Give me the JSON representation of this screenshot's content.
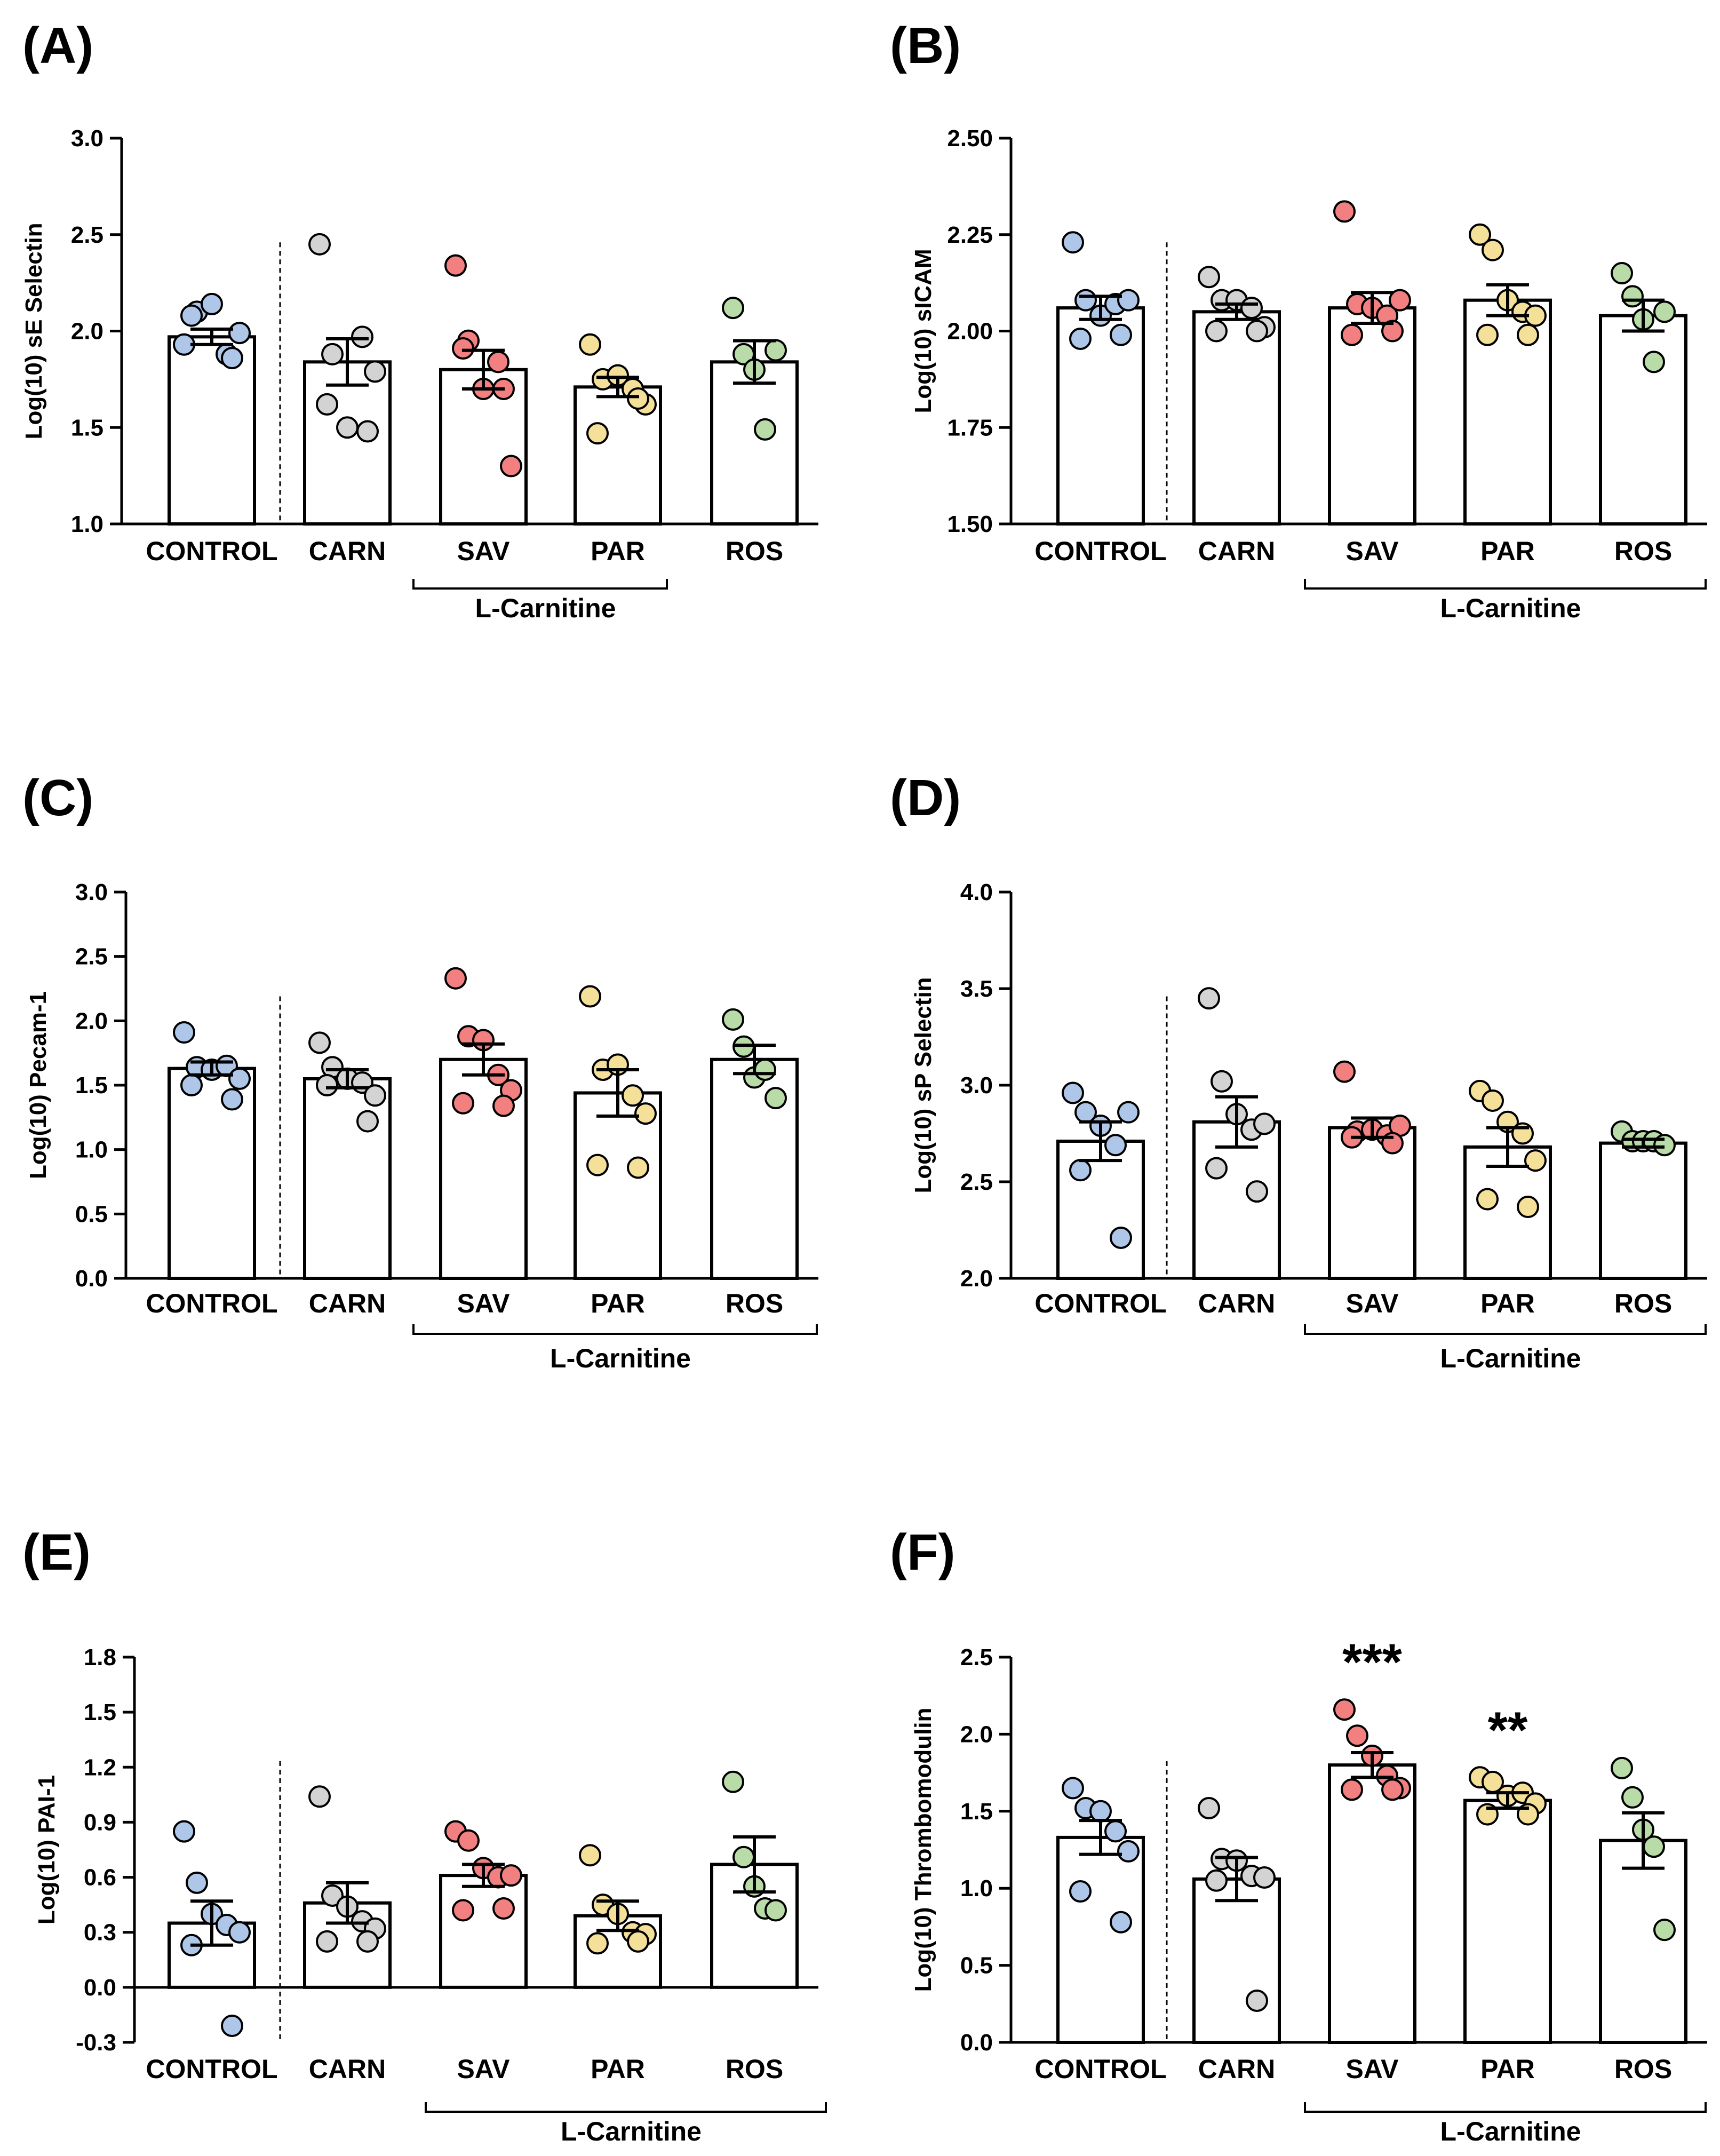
{
  "chart_data": [
    {
      "type": "bar",
      "panel": "(A)",
      "ylabel": "Log(10) sE Selectin",
      "ylim": [
        1.0,
        3.0
      ],
      "yticks": [
        "1.0",
        "1.5",
        "2.0",
        "2.5",
        "3.0"
      ],
      "categories": [
        "CONTROL",
        "CARN",
        "SAV",
        "PAR",
        "ROS"
      ],
      "group_label": "L-Carnitine",
      "means": [
        1.97,
        1.84,
        1.8,
        1.71,
        1.84
      ],
      "sem": [
        0.04,
        0.12,
        0.1,
        0.05,
        0.11
      ],
      "points": [
        [
          1.93,
          2.1,
          2.14,
          1.88,
          1.99,
          2.08,
          1.86
        ],
        [
          2.45,
          1.88,
          1.5,
          1.97,
          1.79,
          1.62,
          1.48
        ],
        [
          2.34,
          1.95,
          1.7,
          1.84,
          1.3,
          1.91,
          1.7
        ],
        [
          1.93,
          1.75,
          1.77,
          1.7,
          1.62,
          1.47,
          1.65
        ],
        [
          2.12,
          1.88,
          1.8,
          1.49,
          1.9
        ]
      ],
      "point_colors": [
        "#aec6e8",
        "#d3d3d3",
        "#f28080",
        "#f5e09a",
        "#b8dba8"
      ],
      "annotations": [
        "",
        "",
        "",
        "",
        ""
      ]
    },
    {
      "type": "bar",
      "panel": "(B)",
      "ylabel": "Log(10) sICAM",
      "ylim": [
        1.5,
        2.5
      ],
      "yticks": [
        "1.50",
        "1.75",
        "2.00",
        "2.25",
        "2.50"
      ],
      "categories": [
        "CONTROL",
        "CARN",
        "SAV",
        "PAR",
        "ROS"
      ],
      "group_label": "L-Carnitine",
      "means": [
        2.06,
        2.05,
        2.06,
        2.08,
        2.04
      ],
      "sem": [
        0.03,
        0.02,
        0.04,
        0.04,
        0.04
      ],
      "points": [
        [
          2.23,
          2.08,
          2.04,
          2.07,
          2.08,
          1.98,
          1.99
        ],
        [
          2.14,
          2.08,
          2.08,
          2.06,
          2.01,
          2.0,
          2.0
        ],
        [
          2.31,
          2.07,
          2.06,
          2.04,
          2.08,
          1.99,
          2.0
        ],
        [
          2.25,
          2.21,
          2.08,
          2.05,
          2.04,
          1.99,
          1.99
        ],
        [
          2.15,
          2.09,
          2.03,
          1.92,
          2.05
        ]
      ],
      "point_colors": [
        "#aec6e8",
        "#d3d3d3",
        "#f28080",
        "#f5e09a",
        "#b8dba8"
      ],
      "annotations": [
        "",
        "",
        "",
        "",
        ""
      ]
    },
    {
      "type": "bar",
      "panel": "(C)",
      "ylabel": "Log(10) Pecam-1",
      "ylim": [
        0.0,
        3.0
      ],
      "yticks": [
        "0.0",
        "0.5",
        "1.0",
        "1.5",
        "2.0",
        "2.5",
        "3.0"
      ],
      "categories": [
        "CONTROL",
        "CARN",
        "SAV",
        "PAR",
        "ROS"
      ],
      "group_label": "L-Carnitine",
      "means": [
        1.63,
        1.55,
        1.7,
        1.44,
        1.7
      ],
      "sem": [
        0.05,
        0.07,
        0.12,
        0.18,
        0.11
      ],
      "points": [
        [
          1.91,
          1.64,
          1.62,
          1.65,
          1.55,
          1.5,
          1.39
        ],
        [
          1.83,
          1.64,
          1.55,
          1.52,
          1.42,
          1.5,
          1.22
        ],
        [
          2.33,
          1.88,
          1.85,
          1.58,
          1.46,
          1.36,
          1.34
        ],
        [
          2.19,
          1.62,
          1.66,
          1.42,
          1.28,
          0.88,
          0.86
        ],
        [
          2.01,
          1.8,
          1.56,
          1.62,
          1.4
        ]
      ],
      "point_colors": [
        "#aec6e8",
        "#d3d3d3",
        "#f28080",
        "#f5e09a",
        "#b8dba8"
      ],
      "annotations": [
        "",
        "",
        "",
        "",
        ""
      ]
    },
    {
      "type": "bar",
      "panel": "(D)",
      "ylabel": "Log(10) sP Selectin",
      "ylim": [
        2.0,
        4.0
      ],
      "yticks": [
        "2.0",
        "2.5",
        "3.0",
        "3.5",
        "4.0"
      ],
      "categories": [
        "CONTROL",
        "CARN",
        "SAV",
        "PAR",
        "ROS"
      ],
      "group_label": "L-Carnitine",
      "means": [
        2.71,
        2.81,
        2.78,
        2.68,
        2.7
      ],
      "sem": [
        0.1,
        0.13,
        0.05,
        0.1,
        0.02
      ],
      "points": [
        [
          2.96,
          2.86,
          2.79,
          2.69,
          2.86,
          2.56,
          2.21
        ],
        [
          3.45,
          3.02,
          2.85,
          2.77,
          2.8,
          2.57,
          2.45
        ],
        [
          3.07,
          2.76,
          2.77,
          2.74,
          2.79,
          2.73,
          2.7
        ],
        [
          2.97,
          2.92,
          2.81,
          2.75,
          2.61,
          2.41,
          2.37
        ],
        [
          2.76,
          2.71,
          2.71,
          2.71,
          2.69
        ]
      ],
      "point_colors": [
        "#aec6e8",
        "#d3d3d3",
        "#f28080",
        "#f5e09a",
        "#b8dba8"
      ],
      "annotations": [
        "",
        "",
        "",
        "",
        ""
      ]
    },
    {
      "type": "bar",
      "panel": "(E)",
      "ylabel": "Log(10) PAI-1",
      "ylim": [
        -0.3,
        1.8
      ],
      "yticks": [
        "-0.3",
        "0.0",
        "0.3",
        "0.6",
        "0.9",
        "1.2",
        "1.5",
        "1.8"
      ],
      "categories": [
        "CONTROL",
        "CARN",
        "SAV",
        "PAR",
        "ROS"
      ],
      "group_label": "L-Carnitine",
      "means": [
        0.35,
        0.46,
        0.61,
        0.39,
        0.67
      ],
      "sem": [
        0.12,
        0.11,
        0.06,
        0.08,
        0.15
      ],
      "points": [
        [
          0.85,
          0.57,
          0.4,
          0.34,
          0.3,
          0.23,
          -0.21
        ],
        [
          1.04,
          0.5,
          0.44,
          0.36,
          0.32,
          0.25,
          0.25
        ],
        [
          0.85,
          0.8,
          0.65,
          0.6,
          0.61,
          0.42,
          0.43
        ],
        [
          0.72,
          0.45,
          0.4,
          0.3,
          0.29,
          0.24,
          0.25
        ],
        [
          1.12,
          0.71,
          0.55,
          0.43,
          0.42
        ]
      ],
      "point_colors": [
        "#aec6e8",
        "#d3d3d3",
        "#f28080",
        "#f5e09a",
        "#b8dba8"
      ],
      "annotations": [
        "",
        "",
        "",
        "",
        ""
      ]
    },
    {
      "type": "bar",
      "panel": "(F)",
      "ylabel": "Log(10) Thrombomodulin",
      "ylim": [
        0.0,
        2.5
      ],
      "yticks": [
        "0.0",
        "0.5",
        "1.0",
        "1.5",
        "2.0",
        "2.5"
      ],
      "categories": [
        "CONTROL",
        "CARN",
        "SAV",
        "PAR",
        "ROS"
      ],
      "group_label": "L-Carnitine",
      "means": [
        1.33,
        1.06,
        1.8,
        1.57,
        1.31
      ],
      "sem": [
        0.11,
        0.14,
        0.08,
        0.05,
        0.18
      ],
      "points": [
        [
          1.65,
          1.52,
          1.5,
          1.37,
          1.24,
          0.98,
          0.78
        ],
        [
          1.52,
          1.19,
          1.18,
          1.08,
          1.07,
          1.05,
          0.27
        ],
        [
          2.16,
          1.99,
          1.86,
          1.73,
          1.65,
          1.64,
          1.64
        ],
        [
          1.72,
          1.69,
          1.6,
          1.62,
          1.55,
          1.48,
          1.48
        ],
        [
          1.78,
          1.59,
          1.38,
          1.27,
          0.73
        ]
      ],
      "point_colors": [
        "#aec6e8",
        "#d3d3d3",
        "#f28080",
        "#f5e09a",
        "#b8dba8"
      ],
      "annotations": [
        "",
        "",
        "***",
        "**",
        ""
      ]
    }
  ]
}
